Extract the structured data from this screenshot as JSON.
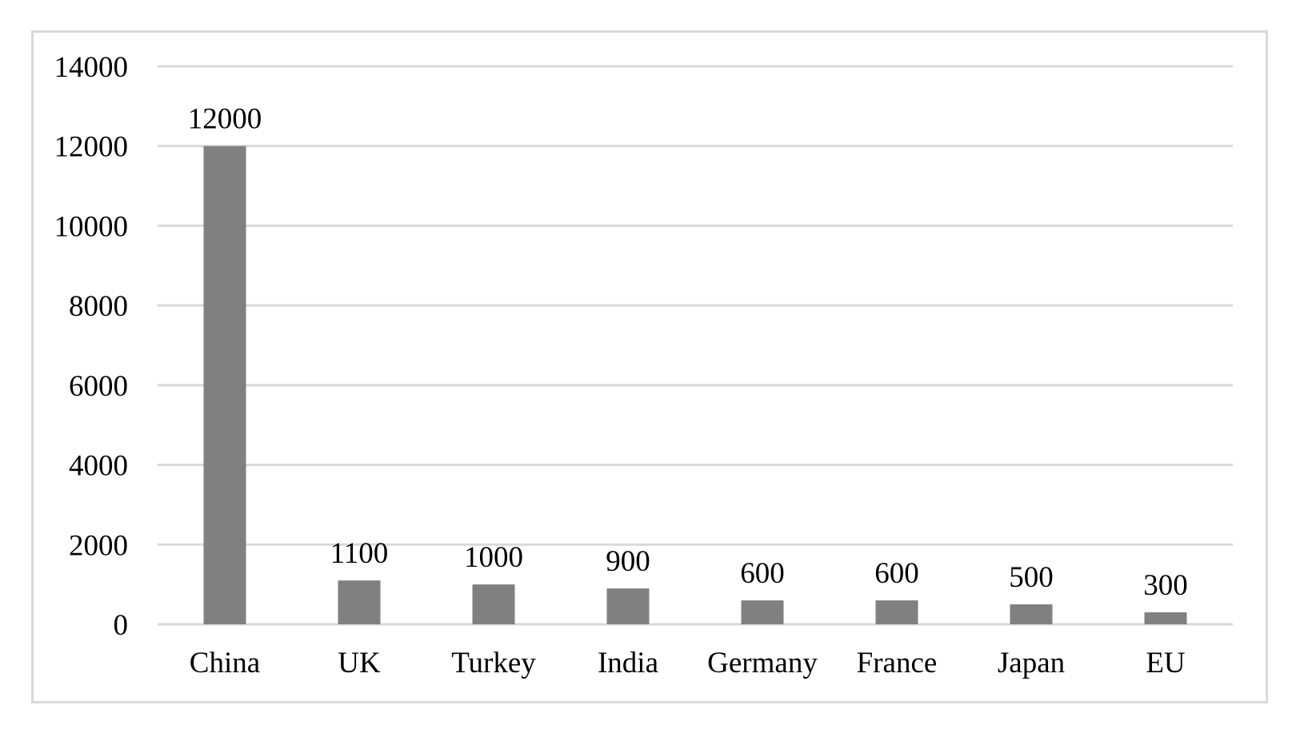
{
  "chart_data": {
    "type": "bar",
    "title": "",
    "xlabel": "",
    "ylabel": "",
    "categories": [
      "China",
      "UK",
      "Turkey",
      "India",
      "Germany",
      "France",
      "Japan",
      "EU"
    ],
    "values": [
      12000,
      1100,
      1000,
      900,
      600,
      600,
      500,
      300
    ],
    "data_labels": [
      "12000",
      "1100",
      "1000",
      "900",
      "600",
      "600",
      "500",
      "300"
    ],
    "ylim": [
      0,
      14000
    ],
    "yticks": [
      0,
      2000,
      4000,
      6000,
      8000,
      10000,
      12000,
      14000
    ],
    "ytick_labels": [
      "0",
      "2000",
      "4000",
      "6000",
      "8000",
      "10000",
      "12000",
      "14000"
    ],
    "grid": true,
    "legend": "none",
    "colors": {
      "bar": "#808080",
      "grid": "#d9d9d9",
      "text": "#000000",
      "frame": "#d9d9d9"
    }
  }
}
